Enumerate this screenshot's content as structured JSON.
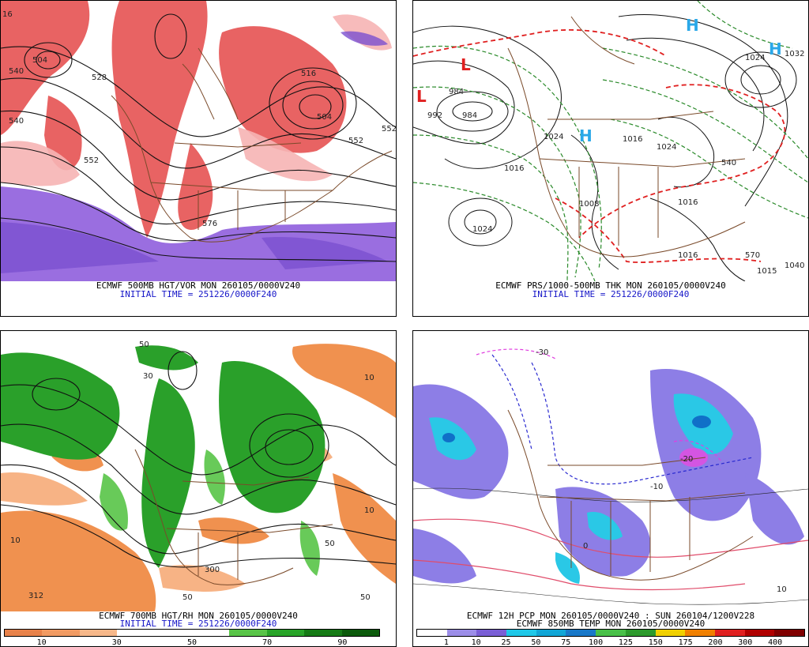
{
  "panels": [
    {
      "id": "500mb",
      "caption1": "ECMWF 500MB HGT/VOR MON 260105/0000V240",
      "caption2": "INITIAL TIME = 251226/0000F240",
      "contour_labels": [
        "504",
        "552",
        "540",
        "528",
        "552",
        "576",
        "552",
        "504",
        "516",
        "540",
        "16"
      ]
    },
    {
      "id": "mslp",
      "caption1": "ECMWF PRS/1000-500MB THK MON 260105/0000V240",
      "caption2": "INITIAL TIME = 251226/0000F240",
      "contour_labels": [
        "984",
        "992",
        "984",
        "1016",
        "1024",
        "1024",
        "1016",
        "1024",
        "1032",
        "1024",
        "1016",
        "1008",
        "1016",
        "540",
        "570",
        "1040",
        "1015"
      ]
    },
    {
      "id": "700mb",
      "caption1": "ECMWF 700MB HGT/RH MON 260105/0000V240",
      "caption2": "INITIAL TIME = 251226/0000F240",
      "contour_labels": [
        "10",
        "50",
        "30",
        "312",
        "10",
        "50",
        "10",
        "50",
        "300",
        "50"
      ],
      "legend_colors": [
        "#e8824a",
        "#f19b63",
        "#f7b88a",
        "#ffffff",
        "#ffffff",
        "#ffffff",
        "#58c447",
        "#28a428",
        "#157a15",
        "#0b5a0b"
      ],
      "legend_ticks": [
        "10",
        "30",
        "50",
        "70",
        "90"
      ]
    },
    {
      "id": "precip",
      "caption1": "ECMWF 12H PCP MON 260105/0000V240 : SUN 260104/1200V228",
      "caption2": "ECMWF 850MB TEMP MON 260105/0000V240",
      "contour_labels": [
        "-30",
        "-20",
        "-10",
        "0",
        "10"
      ],
      "legend_colors": [
        "#ffffff",
        "#9c8ee8",
        "#7a5fd6",
        "#1fc8e8",
        "#10a6d6",
        "#1878c8",
        "#48c048",
        "#2c9a2c",
        "#f0d000",
        "#f08000",
        "#e02020",
        "#b00000",
        "#800000"
      ],
      "legend_ticks": [
        "1",
        "10",
        "25",
        "50",
        "75",
        "100",
        "125",
        "150",
        "175",
        "200",
        "300",
        "400"
      ]
    }
  ]
}
